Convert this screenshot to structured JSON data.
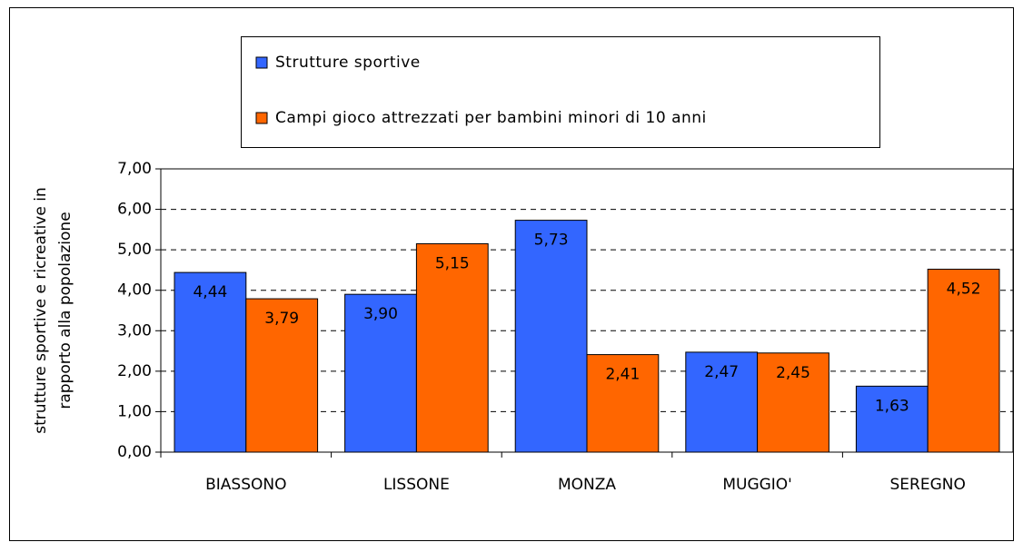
{
  "chart_data": {
    "type": "bar",
    "y_label": [
      "strutture sportive e ricreative in",
      "rapporto alla popolazione"
    ],
    "categories": [
      "BIASSONO",
      "LISSONE",
      "MONZA",
      "MUGGIO'",
      "SEREGNO"
    ],
    "series": [
      {
        "name": "Strutture sportive",
        "color": "#3366ff",
        "values": [
          4.44,
          3.9,
          5.73,
          2.47,
          1.63
        ],
        "value_labels": [
          "4,44",
          "3,90",
          "5,73",
          "2,47",
          "1,63"
        ]
      },
      {
        "name": "Campi gioco attrezzati per bambini minori di 10 anni",
        "color": "#ff6600",
        "values": [
          3.79,
          5.15,
          2.41,
          2.45,
          4.52
        ],
        "value_labels": [
          "3,79",
          "5,15",
          "2,41",
          "2,45",
          "4,52"
        ]
      }
    ],
    "ylim": [
      0,
      7
    ],
    "yticks": [
      {
        "value": 0,
        "label": "0,00"
      },
      {
        "value": 1,
        "label": "1,00"
      },
      {
        "value": 2,
        "label": "2,00"
      },
      {
        "value": 3,
        "label": "3,00"
      },
      {
        "value": 4,
        "label": "4,00"
      },
      {
        "value": 5,
        "label": "5,00"
      },
      {
        "value": 6,
        "label": "6,00"
      },
      {
        "value": 7,
        "label": "7,00"
      }
    ],
    "grid": true,
    "legend": "top"
  }
}
